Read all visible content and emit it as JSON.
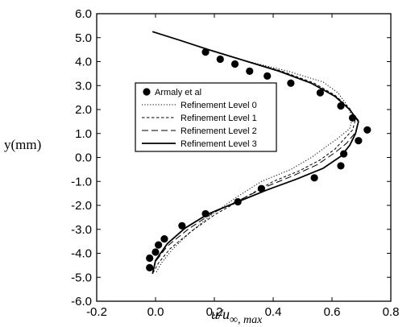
{
  "chart_data": {
    "type": "scatter",
    "title": "",
    "xlabel": "u/u",
    "xlabel_sub": "∞, max",
    "ylabel": "y(mm)",
    "xlim": [
      -0.2,
      0.8
    ],
    "ylim": [
      -6.0,
      6.0
    ],
    "xticks": [
      -0.2,
      0.0,
      0.2,
      0.4,
      0.6,
      0.8
    ],
    "xtick_labels": [
      "-0.2",
      "0.0",
      "0.2",
      "0.4",
      "0.6",
      "0.8"
    ],
    "yticks": [
      -6.0,
      -5.0,
      -4.0,
      -3.0,
      -2.0,
      -1.0,
      0.0,
      1.0,
      2.0,
      3.0,
      4.0,
      5.0,
      6.0
    ],
    "ytick_labels": [
      "-6.0",
      "-5.0",
      "-4.0",
      "-3.0",
      "-2.0",
      "-1.0",
      "0.0",
      "1.0",
      "2.0",
      "3.0",
      "4.0",
      "5.0",
      "6.0"
    ],
    "grid": false,
    "legend_position": "center-left",
    "series": [
      {
        "name": "Armaly et al",
        "style": "markers",
        "color": "#000000",
        "points": [
          [
            0.17,
            4.4
          ],
          [
            0.22,
            4.1
          ],
          [
            0.27,
            3.9
          ],
          [
            0.32,
            3.6
          ],
          [
            0.38,
            3.4
          ],
          [
            0.46,
            3.1
          ],
          [
            0.56,
            2.7
          ],
          [
            0.63,
            2.15
          ],
          [
            0.67,
            1.65
          ],
          [
            0.72,
            1.15
          ],
          [
            0.69,
            0.7
          ],
          [
            0.64,
            0.15
          ],
          [
            0.63,
            -0.35
          ],
          [
            0.54,
            -0.85
          ],
          [
            0.36,
            -1.3
          ],
          [
            0.28,
            -1.85
          ],
          [
            0.17,
            -2.35
          ],
          [
            0.09,
            -2.85
          ],
          [
            0.03,
            -3.4
          ],
          [
            0.01,
            -3.65
          ],
          [
            0.0,
            -3.95
          ],
          [
            -0.02,
            -4.2
          ],
          [
            -0.02,
            -4.6
          ]
        ]
      },
      {
        "name": "Refinement Level 0",
        "style": "dotted",
        "color": "#000000",
        "points": [
          [
            -0.01,
            5.25
          ],
          [
            0.08,
            4.9
          ],
          [
            0.18,
            4.5
          ],
          [
            0.3,
            4.05
          ],
          [
            0.45,
            3.6
          ],
          [
            0.57,
            3.15
          ],
          [
            0.62,
            2.7
          ],
          [
            0.65,
            2.2
          ],
          [
            0.67,
            1.65
          ],
          [
            0.66,
            1.2
          ],
          [
            0.62,
            0.8
          ],
          [
            0.58,
            0.45
          ],
          [
            0.53,
            0.0
          ],
          [
            0.46,
            -0.5
          ],
          [
            0.36,
            -1.0
          ],
          [
            0.27,
            -1.7
          ],
          [
            0.19,
            -2.4
          ],
          [
            0.12,
            -3.1
          ],
          [
            0.06,
            -3.8
          ],
          [
            0.02,
            -4.4
          ],
          [
            0.0,
            -4.85
          ]
        ]
      },
      {
        "name": "Refinement Level 1",
        "style": "dashed",
        "color": "#000000",
        "points": [
          [
            -0.01,
            5.25
          ],
          [
            0.08,
            4.9
          ],
          [
            0.18,
            4.5
          ],
          [
            0.3,
            4.05
          ],
          [
            0.43,
            3.6
          ],
          [
            0.54,
            3.1
          ],
          [
            0.61,
            2.6
          ],
          [
            0.66,
            2.05
          ],
          [
            0.68,
            1.6
          ],
          [
            0.67,
            1.15
          ],
          [
            0.64,
            0.75
          ],
          [
            0.61,
            0.35
          ],
          [
            0.56,
            -0.1
          ],
          [
            0.49,
            -0.55
          ],
          [
            0.4,
            -1.0
          ],
          [
            0.3,
            -1.7
          ],
          [
            0.2,
            -2.4
          ],
          [
            0.12,
            -3.1
          ],
          [
            0.05,
            -3.8
          ],
          [
            0.01,
            -4.4
          ],
          [
            -0.01,
            -4.85
          ]
        ]
      },
      {
        "name": "Refinement Level 2",
        "style": "longdash",
        "color": "#000000",
        "points": [
          [
            -0.01,
            5.25
          ],
          [
            0.08,
            4.9
          ],
          [
            0.18,
            4.5
          ],
          [
            0.3,
            4.05
          ],
          [
            0.42,
            3.6
          ],
          [
            0.53,
            3.1
          ],
          [
            0.61,
            2.55
          ],
          [
            0.66,
            2.0
          ],
          [
            0.69,
            1.55
          ],
          [
            0.68,
            1.05
          ],
          [
            0.65,
            0.6
          ],
          [
            0.61,
            0.2
          ],
          [
            0.55,
            -0.3
          ],
          [
            0.47,
            -0.75
          ],
          [
            0.38,
            -1.2
          ],
          [
            0.29,
            -1.75
          ],
          [
            0.19,
            -2.35
          ],
          [
            0.11,
            -3.0
          ],
          [
            0.04,
            -3.7
          ],
          [
            0.0,
            -4.35
          ],
          [
            -0.01,
            -4.85
          ]
        ]
      },
      {
        "name": "Refinement Level 3",
        "style": "solid",
        "color": "#000000",
        "points": [
          [
            -0.01,
            5.25
          ],
          [
            0.08,
            4.9
          ],
          [
            0.18,
            4.5
          ],
          [
            0.3,
            4.05
          ],
          [
            0.42,
            3.6
          ],
          [
            0.53,
            3.1
          ],
          [
            0.61,
            2.55
          ],
          [
            0.66,
            2.0
          ],
          [
            0.69,
            1.5
          ],
          [
            0.68,
            1.0
          ],
          [
            0.66,
            0.5
          ],
          [
            0.63,
            0.05
          ],
          [
            0.57,
            -0.45
          ],
          [
            0.48,
            -0.9
          ],
          [
            0.38,
            -1.35
          ],
          [
            0.28,
            -1.85
          ],
          [
            0.18,
            -2.35
          ],
          [
            0.1,
            -2.95
          ],
          [
            0.04,
            -3.6
          ],
          [
            0.0,
            -4.3
          ],
          [
            -0.01,
            -4.85
          ]
        ]
      }
    ]
  }
}
